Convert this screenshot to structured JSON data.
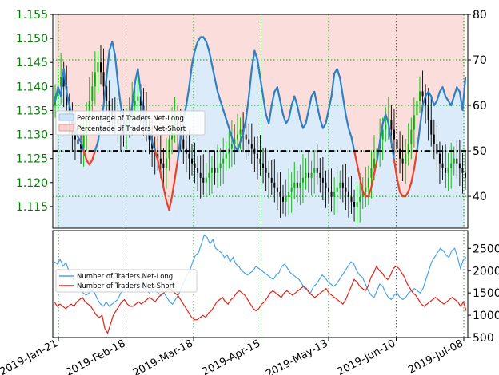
{
  "colors": {
    "price_axis": "#007a00",
    "net_long": "#2f7fc1",
    "net_short": "#e8412c",
    "count_long": "#4ca3e8",
    "count_short": "#e0251b",
    "candle_up": "#00b400",
    "candle_down": "#000000",
    "grid": "#1a9a1a",
    "long_fill": "#cfe4f7",
    "short_fill": "#f9d3cf"
  },
  "chart_data": [
    {
      "type": "line",
      "panel": "top",
      "x_labels": [
        "2019-Jan-21",
        "2019-Feb-18",
        "2019-Mar-18",
        "2019-Apr-15",
        "2019-May-13",
        "2019-Jun-10",
        "2019-Jul-08"
      ],
      "y_left_ticks": [
        "1.155",
        "1.150",
        "1.145",
        "1.140",
        "1.135",
        "1.130",
        "1.125",
        "1.120",
        "1.115"
      ],
      "y_left_range": [
        1.1105,
        1.155
      ],
      "y_right_ticks": [
        "80",
        "70",
        "60",
        "50",
        "40"
      ],
      "y_right_range": [
        33,
        80
      ],
      "reference_line": 50,
      "legend": [
        "Percentage of Traders Net-Long",
        "Percentage of Traders Net-Short"
      ],
      "legend_position": "upper-left",
      "sentiment_percent_long": [
        61,
        64,
        62,
        68,
        63,
        60,
        57,
        55,
        53,
        52,
        50,
        48,
        47,
        48,
        50,
        52,
        56,
        60,
        66,
        72,
        74,
        71,
        65,
        60,
        57,
        54,
        56,
        60,
        65,
        68,
        63,
        58,
        55,
        54,
        52,
        50,
        48,
        45,
        42,
        39,
        37,
        40,
        44,
        48,
        53,
        57,
        60,
        64,
        69,
        72,
        74,
        75,
        75,
        74,
        72,
        69,
        66,
        63,
        61,
        59,
        57,
        55,
        53,
        51,
        50,
        52,
        54,
        57,
        62,
        68,
        72,
        70,
        66,
        62,
        58,
        56,
        60,
        63,
        64,
        61,
        58,
        56,
        57,
        60,
        62,
        60,
        57,
        55,
        56,
        59,
        62,
        63,
        60,
        57,
        55,
        56,
        59,
        62,
        67,
        68,
        66,
        62,
        58,
        55,
        53,
        50,
        47,
        44,
        41,
        40,
        40,
        42,
        45,
        48,
        52,
        56,
        58,
        56,
        52,
        48,
        44,
        41,
        40,
        40,
        41,
        43,
        46,
        50,
        55,
        60,
        62,
        63,
        62,
        60,
        61,
        63,
        64,
        62,
        61,
        60,
        62,
        64,
        63,
        59,
        66
      ],
      "price_close": [
        1.138,
        1.14,
        1.142,
        1.14,
        1.136,
        1.133,
        1.13,
        1.129,
        1.128,
        1.127,
        1.131,
        1.133,
        1.137,
        1.14,
        1.143,
        1.145,
        1.143,
        1.14,
        1.137,
        1.135,
        1.134,
        1.133,
        1.132,
        1.131,
        1.13,
        1.133,
        1.134,
        1.136,
        1.137,
        1.138,
        1.136,
        1.134,
        1.131,
        1.129,
        1.127,
        1.126,
        1.125,
        1.124,
        1.123,
        1.125,
        1.129,
        1.132,
        1.133,
        1.131,
        1.129,
        1.127,
        1.126,
        1.125,
        1.124,
        1.123,
        1.122,
        1.121,
        1.12,
        1.121,
        1.122,
        1.123,
        1.122,
        1.123,
        1.124,
        1.125,
        1.126,
        1.127,
        1.128,
        1.129,
        1.13,
        1.131,
        1.13,
        1.129,
        1.128,
        1.127,
        1.126,
        1.125,
        1.124,
        1.123,
        1.122,
        1.121,
        1.12,
        1.119,
        1.118,
        1.117,
        1.116,
        1.117,
        1.118,
        1.119,
        1.12,
        1.119,
        1.12,
        1.121,
        1.122,
        1.121,
        1.122,
        1.123,
        1.122,
        1.121,
        1.12,
        1.119,
        1.118,
        1.117,
        1.118,
        1.119,
        1.12,
        1.119,
        1.118,
        1.117,
        1.116,
        1.115,
        1.116,
        1.117,
        1.118,
        1.119,
        1.121,
        1.123,
        1.125,
        1.127,
        1.129,
        1.131,
        1.132,
        1.133,
        1.131,
        1.129,
        1.127,
        1.125,
        1.124,
        1.126,
        1.128,
        1.131,
        1.134,
        1.137,
        1.139,
        1.138,
        1.136,
        1.133,
        1.13,
        1.128,
        1.126,
        1.124,
        1.123,
        1.122,
        1.123,
        1.124,
        1.125,
        1.124,
        1.123,
        1.122,
        1.121
      ]
    },
    {
      "type": "line",
      "panel": "bottom",
      "y_right_ticks": [
        "2500",
        "2000",
        "1500",
        "1000",
        "500"
      ],
      "y_right_range": [
        500,
        2900
      ],
      "legend": [
        "Number of Traders Net-Long",
        "Number of Traders Net-Short"
      ],
      "legend_position": "center-left",
      "series": [
        {
          "name": "Number of Traders Net-Long",
          "values": [
            2200,
            2150,
            2250,
            2100,
            2180,
            2000,
            1900,
            1700,
            1650,
            1600,
            1500,
            1450,
            1500,
            1550,
            1500,
            1350,
            1250,
            1200,
            1300,
            1200,
            1250,
            1300,
            1350,
            1500,
            1550,
            1700,
            1600,
            1650,
            1700,
            1750,
            1650,
            1600,
            1550,
            1500,
            1600,
            1550,
            1500,
            1450,
            1500,
            1400,
            1300,
            1250,
            1350,
            1450,
            1600,
            1750,
            1900,
            2000,
            2200,
            2350,
            2400,
            2600,
            2800,
            2750,
            2600,
            2700,
            2500,
            2450,
            2400,
            2300,
            2350,
            2200,
            2300,
            2150,
            2100,
            2000,
            1950,
            1900,
            1950,
            2000,
            2100,
            2050,
            2000,
            1950,
            1900,
            1850,
            1800,
            1900,
            1950,
            2100,
            2150,
            2050,
            1950,
            1900,
            1850,
            1800,
            1700,
            1600,
            1550,
            1500,
            1650,
            1700,
            1800,
            1900,
            1850,
            1750,
            1700,
            1650,
            1700,
            1800,
            1900,
            2000,
            2100,
            2200,
            2150,
            2000,
            1900,
            1850,
            1700,
            1550,
            1450,
            1400,
            1550,
            1700,
            1650,
            1500,
            1400,
            1350,
            1450,
            1500,
            1400,
            1350,
            1400,
            1500,
            1550,
            1600,
            1550,
            1500,
            1600,
            1800,
            2000,
            2200,
            2300,
            2400,
            2500,
            2450,
            2350,
            2300,
            2450,
            2500,
            2300,
            2050,
            2250,
            2300
          ]
        },
        {
          "name": "Number of Traders Net-Short",
          "values": [
            1300,
            1200,
            1250,
            1200,
            1150,
            1200,
            1250,
            1200,
            1300,
            1350,
            1400,
            1300,
            1250,
            1200,
            1100,
            1000,
            950,
            1000,
            700,
            600,
            800,
            1000,
            1100,
            1200,
            1300,
            1350,
            1250,
            1200,
            1200,
            1250,
            1300,
            1250,
            1300,
            1350,
            1400,
            1350,
            1300,
            1400,
            1450,
            1500,
            1550,
            1600,
            1550,
            1500,
            1450,
            1350,
            1250,
            1150,
            1050,
            950,
            900,
            900,
            950,
            1000,
            950,
            1050,
            1100,
            1200,
            1300,
            1350,
            1400,
            1300,
            1250,
            1350,
            1400,
            1500,
            1550,
            1500,
            1450,
            1350,
            1250,
            1150,
            1100,
            1150,
            1250,
            1300,
            1400,
            1500,
            1550,
            1500,
            1450,
            1400,
            1500,
            1550,
            1500,
            1450,
            1500,
            1550,
            1600,
            1650,
            1600,
            1500,
            1450,
            1400,
            1450,
            1500,
            1550,
            1600,
            1500,
            1450,
            1400,
            1350,
            1300,
            1250,
            1350,
            1500,
            1650,
            1800,
            1750,
            1650,
            1600,
            1550,
            1650,
            1850,
            1950,
            2100,
            2000,
            1950,
            1850,
            1800,
            1900,
            2050,
            2100,
            2050,
            1950,
            1850,
            1700,
            1600,
            1500,
            1450,
            1350,
            1250,
            1200,
            1250,
            1300,
            1350,
            1400,
            1350,
            1300,
            1250,
            1300,
            1350,
            1400,
            1350,
            1300,
            1200,
            1300,
            1100
          ]
        }
      ]
    }
  ]
}
